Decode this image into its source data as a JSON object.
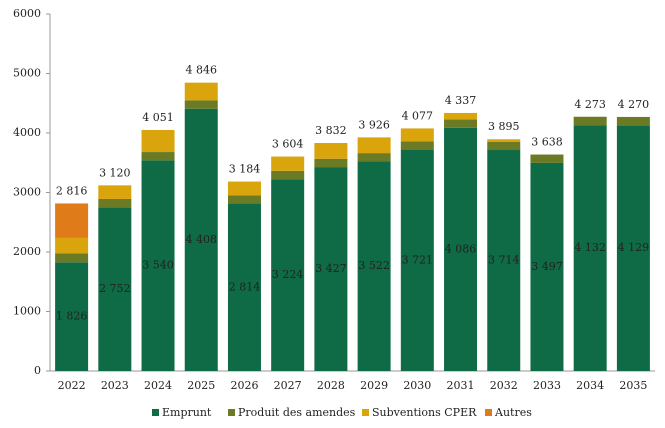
{
  "chart_data": {
    "type": "stacked-bar",
    "categories": [
      "2022",
      "2023",
      "2024",
      "2025",
      "2026",
      "2027",
      "2028",
      "2029",
      "2030",
      "2031",
      "2032",
      "2033",
      "2034",
      "2035"
    ],
    "series": [
      {
        "name": "Emprunt",
        "color": "#0e6b45",
        "values": [
          1826,
          2752,
          3540,
          4408,
          2814,
          3224,
          3427,
          3522,
          3721,
          4086,
          3714,
          3497,
          4132,
          4129
        ],
        "value_labels": [
          "1 826",
          "2 752",
          "3 540",
          "4 408",
          "2 814",
          "3 224",
          "3 427",
          "3 522",
          "3 721",
          "4 086",
          "3 714",
          "3 497",
          "4 132",
          "4 129"
        ]
      },
      {
        "name": "Produit des amendes",
        "color": "#6b7a25",
        "values": [
          150,
          140,
          140,
          140,
          140,
          140,
          140,
          140,
          140,
          140,
          140,
          141,
          141,
          141
        ]
      },
      {
        "name": "Subventions CPER",
        "color": "#d9a40c",
        "values": [
          260,
          228,
          371,
          298,
          230,
          240,
          265,
          264,
          216,
          111,
          41,
          0,
          0,
          0
        ]
      },
      {
        "name": "Autres",
        "color": "#e07b1a",
        "values": [
          580,
          0,
          0,
          0,
          0,
          0,
          0,
          0,
          0,
          0,
          0,
          0,
          0,
          0
        ]
      }
    ],
    "totals": [
      2816,
      3120,
      4051,
      4846,
      3184,
      3604,
      3832,
      3926,
      4077,
      4337,
      3895,
      3638,
      4273,
      4270
    ],
    "total_labels": [
      "2 816",
      "3 120",
      "4 051",
      "4 846",
      "3 184",
      "3 604",
      "3 832",
      "3 926",
      "4 077",
      "4 337",
      "3 895",
      "3 638",
      "4 273",
      "4 270"
    ],
    "ylim": [
      0,
      6000
    ],
    "yticks": [
      0,
      1000,
      2000,
      3000,
      4000,
      5000,
      6000
    ],
    "grid": false
  }
}
